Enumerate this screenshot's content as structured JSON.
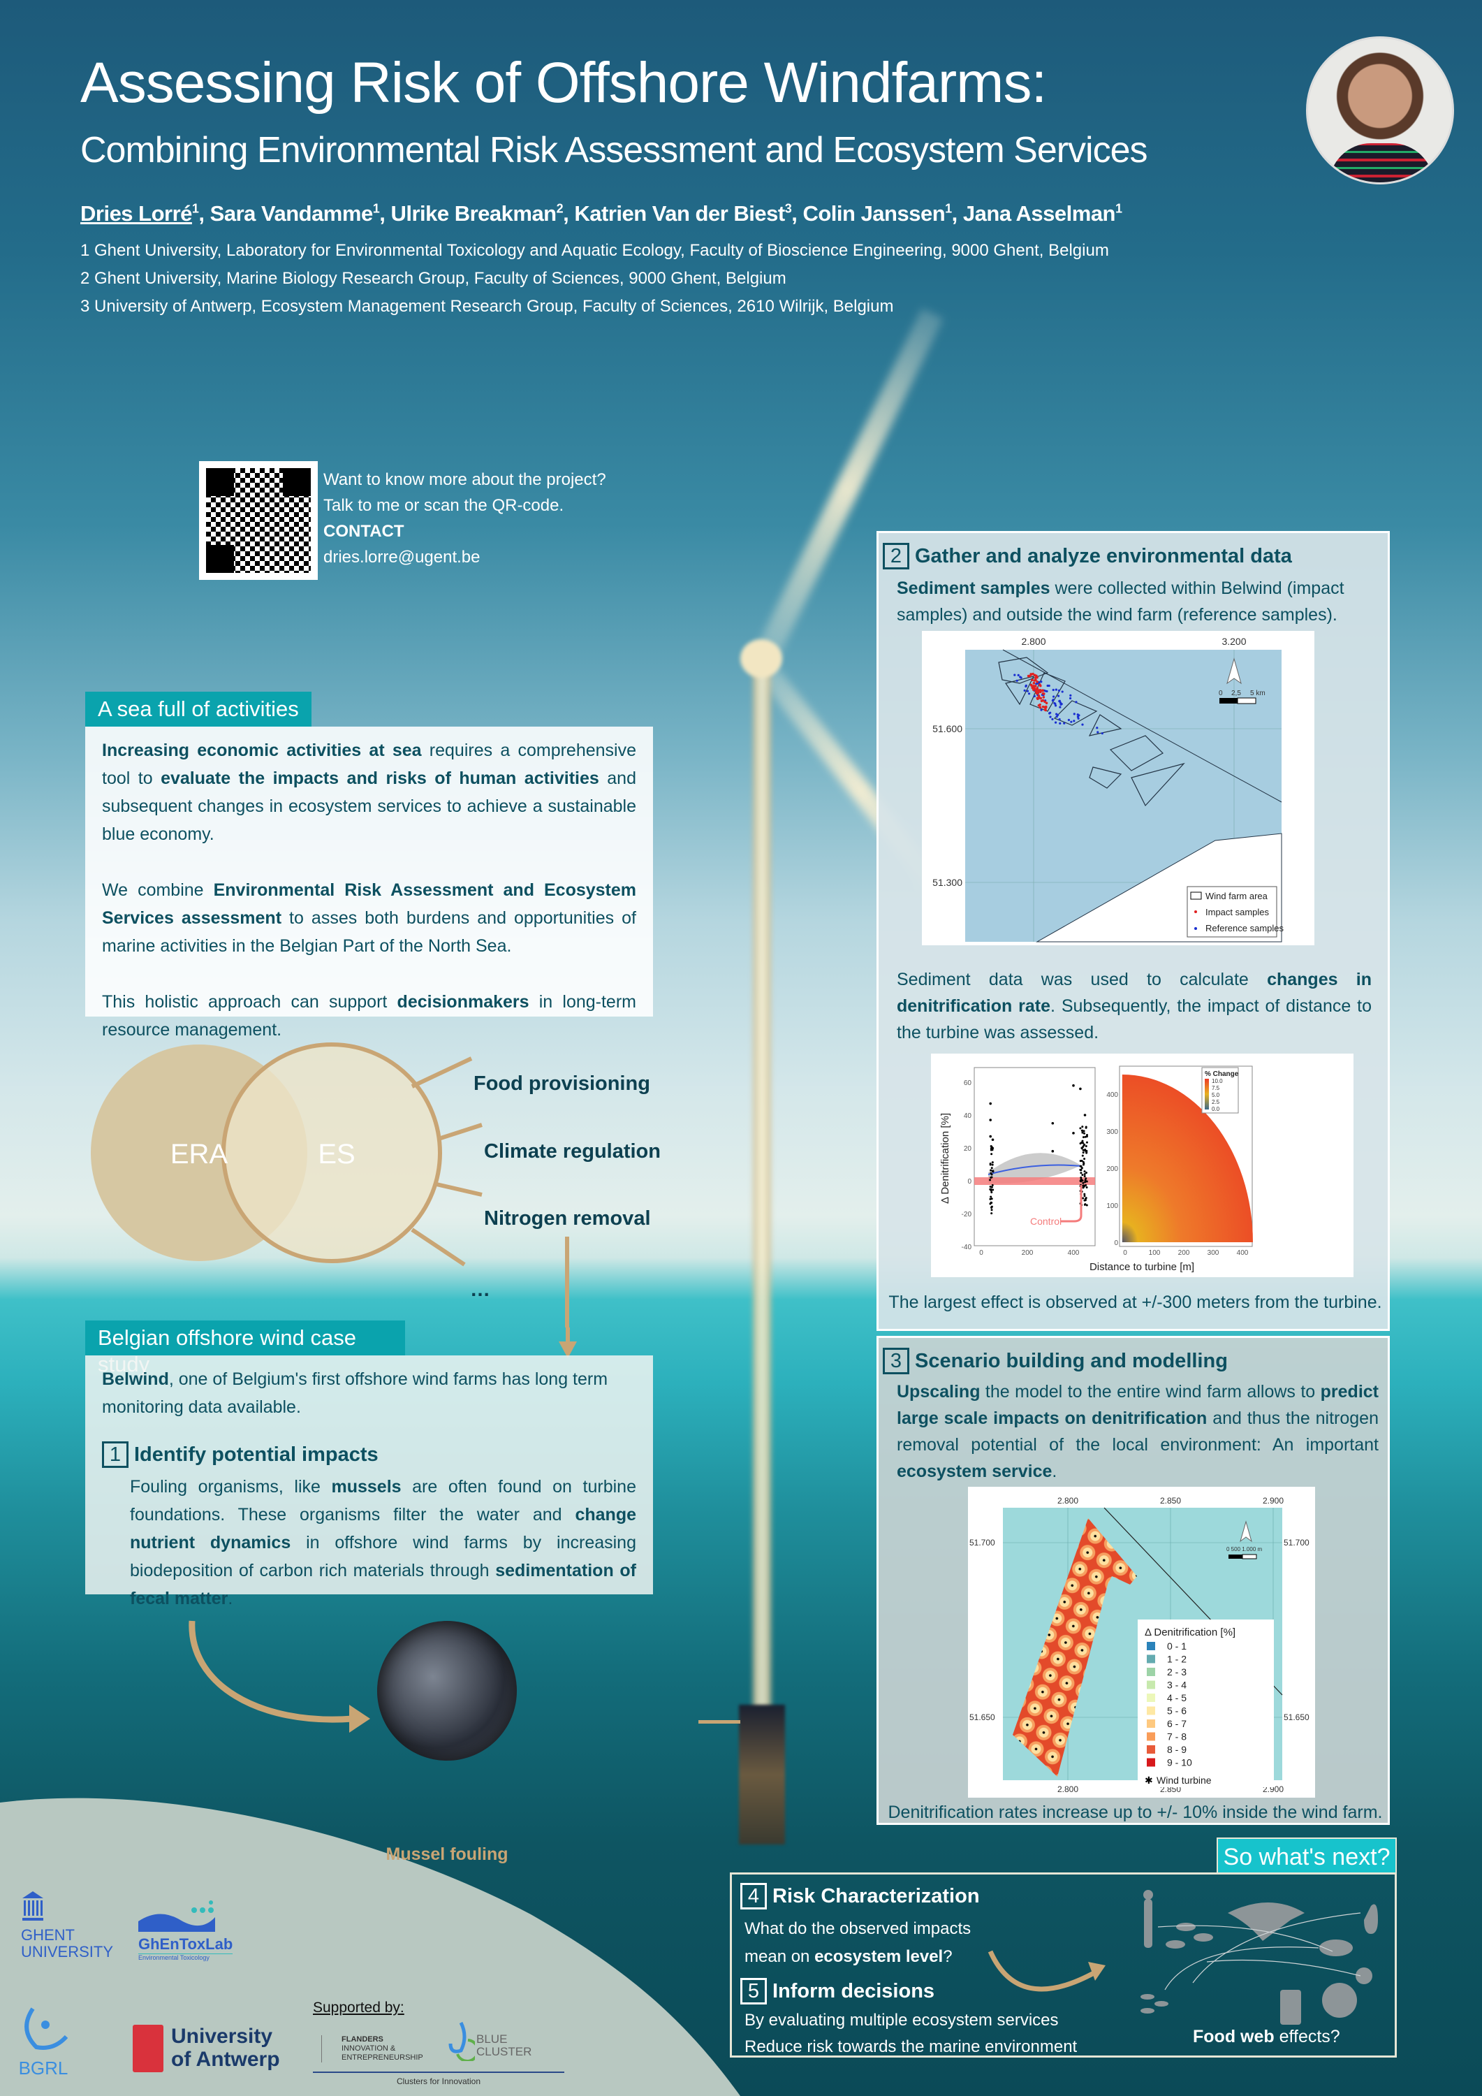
{
  "header": {
    "title": "Assessing Risk of Offshore Windfarms:",
    "subtitle": "Combining Environmental Risk Assessment and Ecosystem Services",
    "authors": [
      {
        "name": "Dries Lorré",
        "sup": "1",
        "presenter": true
      },
      {
        "name": "Sara Vandamme",
        "sup": "1"
      },
      {
        "name": "Ulrike Breakman",
        "sup": "2"
      },
      {
        "name": "Katrien Van der Biest",
        "sup": "3"
      },
      {
        "name": "Colin Janssen",
        "sup": "1"
      },
      {
        "name": "Jana Asselman",
        "sup": "1"
      }
    ],
    "affiliations": [
      "1 Ghent University, Laboratory for Environmental Toxicology and Aquatic Ecology, Faculty of Bioscience Engineering, 9000 Ghent, Belgium",
      "2 Ghent University, Marine Biology Research Group, Faculty of Sciences, 9000 Ghent, Belgium",
      "3 University of Antwerp, Ecosystem Management Research Group, Faculty of Sciences, 2610 Wilrijk, Belgium"
    ]
  },
  "contact": {
    "line1": "Want to know more about the project?",
    "line2": "Talk to me or scan the QR-code.",
    "label": "CONTACT",
    "email": "dries.lorre@ugent.be"
  },
  "sea": {
    "header": "A sea full of activities",
    "p1": [
      {
        "t": "Increasing economic activities at sea",
        "b": true
      },
      {
        "t": " requires a comprehensive tool to "
      },
      {
        "t": "evaluate the impacts and risks of human activities",
        "b": true
      },
      {
        "t": " and subsequent changes in ecosystem services to achieve a sustainable blue economy."
      }
    ],
    "p2": [
      {
        "t": "We combine "
      },
      {
        "t": "Environmental Risk Assessment and Ecosystem Services assessment",
        "b": true
      },
      {
        "t": " to asses both burdens and opportunities of marine activities in the Belgian Part of the North Sea."
      }
    ],
    "p3": [
      {
        "t": "This holistic approach can support "
      },
      {
        "t": "decisionmakers",
        "b": true
      },
      {
        "t": " in long-term resource management."
      }
    ]
  },
  "venn": {
    "left": "ERA",
    "right": "ES",
    "services": [
      "Food provisioning",
      "Climate regulation",
      "Nitrogen removal",
      "…"
    ],
    "colors": {
      "era": "#d6c7a2",
      "es": "#e8dfc4",
      "stroke": "#c9a574"
    }
  },
  "case": {
    "header": "Belgian offshore wind case study",
    "intro": [
      {
        "t": "Belwind",
        "b": true
      },
      {
        "t": ", one of Belgium's first offshore wind farms has long term monitoring data available."
      }
    ],
    "step1": {
      "num": "1",
      "title": "Identify potential impacts",
      "text": [
        {
          "t": "Fouling organisms, like "
        },
        {
          "t": "mussels",
          "b": true
        },
        {
          "t": " are often found on turbine foundations. These organisms filter the water and "
        },
        {
          "t": "change nutrient dynamics",
          "b": true
        },
        {
          "t": " in offshore wind farms by increasing biodeposition of carbon rich materials through "
        },
        {
          "t": "sedimentation of fecal matter",
          "b": true
        },
        {
          "t": "."
        }
      ]
    },
    "mussel_caption": "Mussel fouling"
  },
  "step2": {
    "num": "2",
    "title": "Gather and analyze environmental data",
    "text1": [
      {
        "t": "Sediment samples",
        "b": true
      },
      {
        "t": " were collected within Belwind (impact samples) and outside the wind farm (reference samples)."
      }
    ],
    "text2": [
      {
        "t": "Sediment data was used to calculate "
      },
      {
        "t": "changes in denitrification rate",
        "b": true
      },
      {
        "t": ". Subsequently, the impact of distance to the turbine was assessed."
      }
    ],
    "caption": "The largest effect is observed at +/-300 meters from the turbine.",
    "map": {
      "x_ticks": [
        "2.800",
        "3.200"
      ],
      "y_ticks": [
        "51.600",
        "51.300"
      ],
      "scale": [
        "0",
        "2,5",
        "5 km"
      ],
      "legend": [
        "Wind farm area",
        "Impact samples",
        "Reference samples"
      ],
      "colors": {
        "sea": "#a7cde0",
        "impact": "#e02020",
        "reference": "#1a2fd0"
      }
    },
    "plot": {
      "ylabel": "Δ Denitrification [%]",
      "xlabel": "Distance to turbine [m]",
      "y_ticks": [
        "60",
        "40",
        "20",
        "0",
        "-20",
        "-40"
      ],
      "x_ticks": [
        "0",
        "200",
        "400"
      ],
      "control_label": "Control",
      "heat_y_ticks": [
        "400",
        "300",
        "200",
        "100",
        "0"
      ],
      "heat_x_ticks": [
        "0",
        "100",
        "200",
        "300",
        "400"
      ],
      "legend_title": "% Change",
      "legend_ticks": [
        "10.0",
        "7.5",
        "5.0",
        "2.5",
        "0.0"
      ]
    }
  },
  "step3": {
    "num": "3",
    "title": "Scenario building and modelling",
    "text": [
      {
        "t": "Upscaling",
        "b": true
      },
      {
        "t": " the model to the entire wind farm allows to "
      },
      {
        "t": "predict large scale impacts on denitrification",
        "b": true
      },
      {
        "t": " and thus the nitrogen removal potential of the local environment: An important "
      },
      {
        "t": "ecosystem service",
        "b": true
      },
      {
        "t": "."
      }
    ],
    "caption": "Denitrification rates increase up to +/- 10% inside the wind farm.",
    "map": {
      "x_ticks": [
        "2.800",
        "2.850",
        "2.900"
      ],
      "y_ticks": [
        "51.700",
        "51.650"
      ],
      "scale": "0   500 1.000 m",
      "legend_title": "Δ Denitrification [%]",
      "legend": [
        {
          "label": "0 - 1",
          "color": "#2b83ba"
        },
        {
          "label": "1 - 2",
          "color": "#64abb0"
        },
        {
          "label": "2 - 3",
          "color": "#9dd3a7"
        },
        {
          "label": "3 - 4",
          "color": "#c7e9ad"
        },
        {
          "label": "4 - 5",
          "color": "#ecf7b9"
        },
        {
          "label": "5 - 6",
          "color": "#fee8a4"
        },
        {
          "label": "6 - 7",
          "color": "#fec980"
        },
        {
          "label": "7 - 8",
          "color": "#f99d59"
        },
        {
          "label": "8 - 9",
          "color": "#e85b3a"
        },
        {
          "label": "9 - 10",
          "color": "#d7191c"
        }
      ],
      "turbine_label": "Wind turbine"
    }
  },
  "next": {
    "header": "So what's next?",
    "step4": {
      "num": "4",
      "title": "Risk Characterization",
      "text": [
        {
          "t": "What do the observed impacts mean on "
        },
        {
          "t": "ecosystem level",
          "b": true
        },
        {
          "t": "?"
        }
      ]
    },
    "step5": {
      "num": "5",
      "title": "Inform decisions",
      "line1": "By evaluating multiple ecosystem services",
      "line2": "Reduce risk towards the marine environment"
    },
    "foodweb": [
      {
        "t": "Food web",
        "b": true
      },
      {
        "t": " effects?"
      }
    ]
  },
  "logos": {
    "ghent": [
      "GHENT",
      "UNIVERSITY"
    ],
    "ghentox": "GhEnToxLab",
    "ghentox_sub": "Environmental Toxicology",
    "bgrl": "BGRL",
    "antwerp": [
      "University",
      "of Antwerp"
    ],
    "supported": "Supported by:",
    "flanders": [
      "FLANDERS",
      "INNOVATION &",
      "ENTREPRENEURSHIP"
    ],
    "blue": [
      "BLUE",
      "CLUSTER"
    ],
    "clusters": "Clusters for Innovation"
  }
}
